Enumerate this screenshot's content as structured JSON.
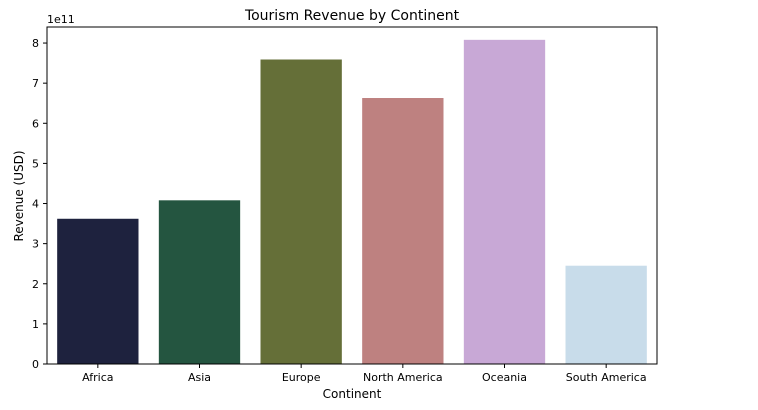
{
  "chart_data": {
    "type": "bar",
    "title": "Tourism Revenue by Continent",
    "xlabel": "Continent",
    "ylabel": "Revenue (USD)",
    "y_offset_label": "1e11",
    "categories": [
      "Africa",
      "Asia",
      "Europe",
      "North America",
      "Oceania",
      "South America"
    ],
    "values": [
      362000000000.0,
      408000000000.0,
      759000000000.0,
      663000000000.0,
      808000000000.0,
      245000000000.0
    ],
    "colors": [
      "#1e223e",
      "#245540",
      "#656f38",
      "#be8180",
      "#c8a8d6",
      "#c8dcea"
    ],
    "ylim": [
      0,
      840000000000.0
    ],
    "yticks": [
      0,
      100000000000.0,
      200000000000.0,
      300000000000.0,
      400000000000.0,
      500000000000.0,
      600000000000.0,
      700000000000.0,
      800000000000.0
    ],
    "ytick_labels": [
      "0",
      "1",
      "2",
      "3",
      "4",
      "5",
      "6",
      "7",
      "8"
    ],
    "grid": false
  }
}
